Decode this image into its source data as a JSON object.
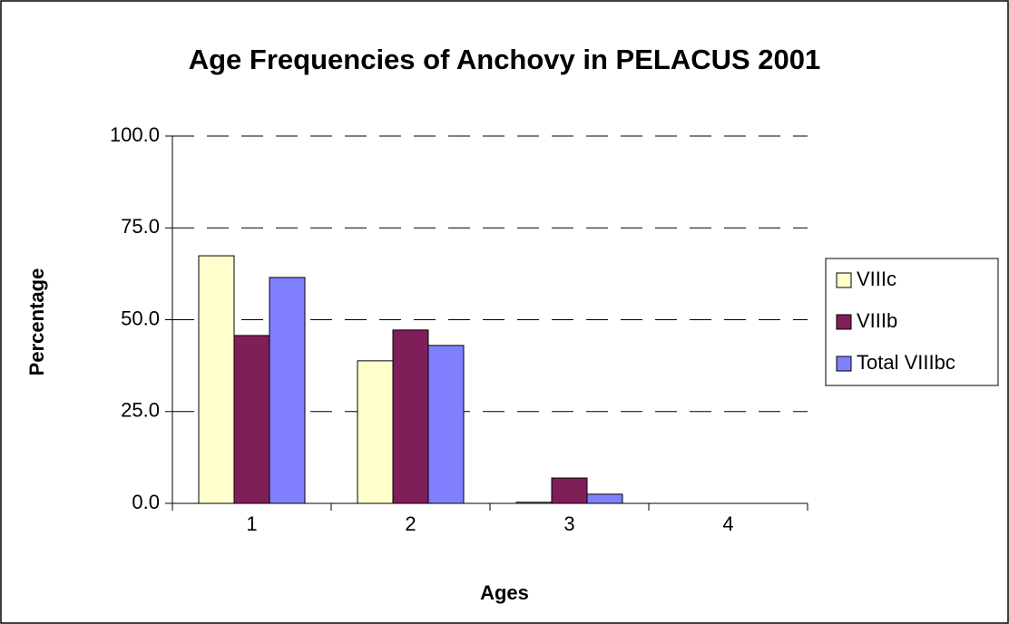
{
  "chart_data": {
    "type": "bar",
    "title": "Age Frequencies of Anchovy in PELACUS 2001",
    "x_label": "Ages",
    "y_label": "Percentage",
    "categories": [
      "1",
      "2",
      "3",
      "4"
    ],
    "series": [
      {
        "name": "VIIIc",
        "color": "#ffffcc",
        "values": [
          67.4,
          38.8,
          0.3,
          0
        ]
      },
      {
        "name": "VIIIb",
        "color": "#7f1f5a",
        "values": [
          45.7,
          47.2,
          6.9,
          0
        ]
      },
      {
        "name": "Total VIIIbc",
        "color": "#8080ff",
        "values": [
          61.5,
          43.0,
          2.5,
          0
        ]
      }
    ],
    "ylim": [
      0,
      100
    ],
    "yticks": [
      {
        "value": 0,
        "label": "0.0"
      },
      {
        "value": 25,
        "label": "25.0"
      },
      {
        "value": 50,
        "label": "50.0"
      },
      {
        "value": 75,
        "label": "75.0"
      },
      {
        "value": 100,
        "label": "100.0"
      }
    ],
    "grid": true,
    "legend": "right"
  }
}
